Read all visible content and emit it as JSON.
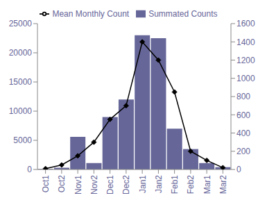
{
  "chart_data": {
    "type": "bar",
    "categories": [
      "Oct1",
      "Oct2",
      "Nov1",
      "Nov2",
      "Dec1",
      "Dec2",
      "Jan1",
      "Jan2",
      "Feb1",
      "Feb2",
      "Mar1",
      "Mar2"
    ],
    "series": [
      {
        "name": "Summated Counts",
        "type": "bar",
        "color": "#666699",
        "values": [
          100,
          300,
          5600,
          1100,
          9000,
          12000,
          23000,
          22500,
          7000,
          3500,
          1100,
          400
        ]
      },
      {
        "name": "Mean Monthly Count",
        "type": "line",
        "color": "#000000",
        "marker": "diamond",
        "axis": "y2",
        "values": [
          10,
          50,
          150,
          300,
          550,
          700,
          1400,
          1200,
          850,
          200,
          100,
          20
        ]
      }
    ],
    "ylim": [
      0,
      25000
    ],
    "yticks": [
      0,
      5000,
      10000,
      15000,
      20000,
      25000
    ],
    "y2lim": [
      0,
      1600
    ],
    "y2ticks": [
      0,
      200,
      400,
      600,
      800,
      1000,
      1200,
      1400,
      1600
    ],
    "legend": "top",
    "grid": false
  }
}
